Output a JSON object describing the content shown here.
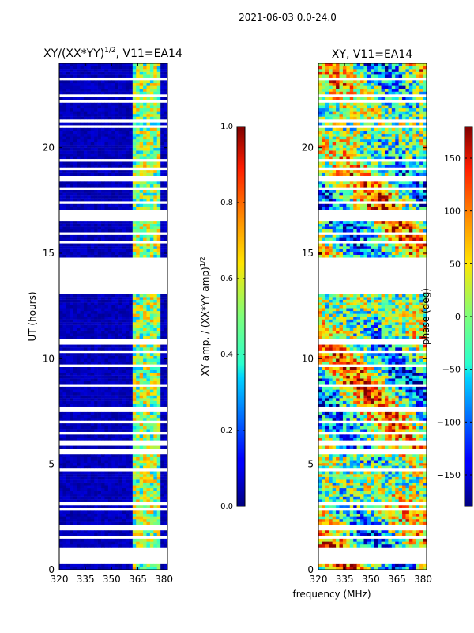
{
  "figure_title": "2021-06-03 0.0-24.0",
  "chart_data": [
    {
      "type": "heatmap",
      "title_html": "XY/(XX*YY)",
      "title_sup": "1/2",
      "title_suffix": ", V11=EA14",
      "xlabel": "",
      "ylabel": "UT (hours)",
      "xlim": [
        320,
        382
      ],
      "ylim": [
        0,
        24
      ],
      "xticks": [
        320,
        335,
        350,
        365,
        380
      ],
      "yticks": [
        0,
        5,
        10,
        15,
        20
      ],
      "colorbar": {
        "label_main": "XY amp. / (XX*YY amp)",
        "label_sup": "1/2",
        "range": [
          0.0,
          1.0
        ],
        "ticks": [
          "0.0",
          "0.2",
          "0.4",
          "0.6",
          "0.8",
          "1.0"
        ]
      },
      "bright_band_mhz": [
        362,
        377
      ],
      "flagged_hours": [
        [
          0.25,
          1.0
        ],
        [
          13.15,
          14.8
        ],
        [
          16.5,
          17.0
        ],
        [
          20.9,
          21.0
        ]
      ]
    },
    {
      "type": "heatmap",
      "title": "XY, V11=EA14",
      "xlabel": "frequency (MHz)",
      "ylabel": "",
      "xlim": [
        320,
        382
      ],
      "ylim": [
        0,
        24
      ],
      "xticks": [
        320,
        335,
        350,
        365,
        380
      ],
      "yticks": [
        0,
        5,
        10,
        15,
        20
      ],
      "colorbar": {
        "label_main": "phase (deg)",
        "range": [
          -180,
          180
        ],
        "ticks": [
          "150",
          "100",
          "50",
          "0",
          "−50",
          "−100",
          "−150"
        ],
        "tick_values": [
          150,
          100,
          50,
          0,
          -50,
          -100,
          -150
        ]
      },
      "flagged_hours": [
        [
          0.25,
          1.0
        ],
        [
          13.15,
          14.8
        ],
        [
          16.5,
          17.0
        ],
        [
          20.9,
          21.0
        ]
      ]
    }
  ]
}
